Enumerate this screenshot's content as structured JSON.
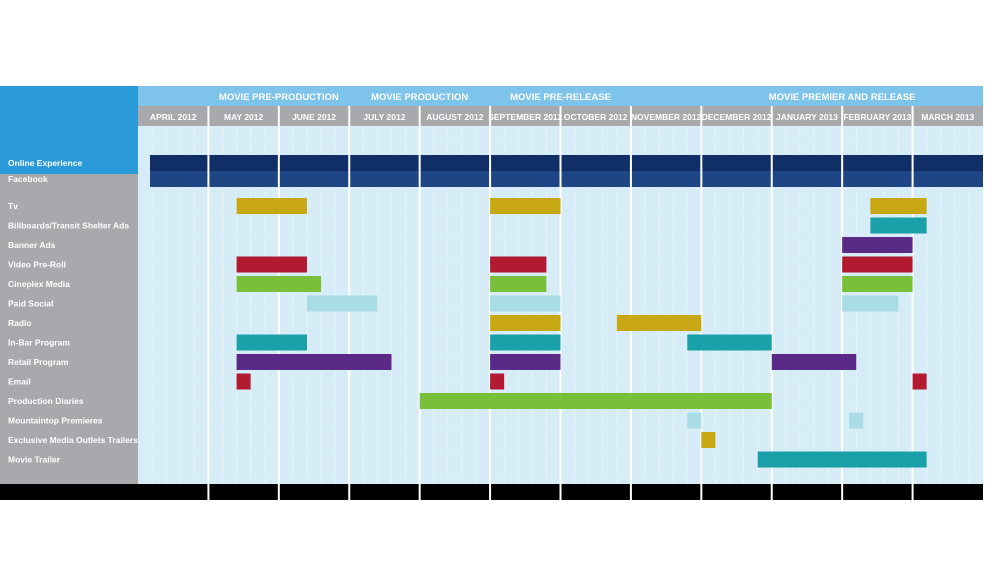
{
  "chart_data": {
    "type": "gantt",
    "title": "",
    "phases": [
      {
        "label": "MOVIE PRE-PRODUCTION",
        "start": 1,
        "end": 3
      },
      {
        "label": "MOVIE PRODUCTION",
        "start": 3,
        "end": 5
      },
      {
        "label": "MOVIE PRE-RELEASE",
        "start": 5,
        "end": 7
      },
      {
        "label": "MOVIE PREMIER AND RELEASE",
        "start": 8,
        "end": 12
      }
    ],
    "months": [
      "APRIL 2012",
      "MAY 2012",
      "JUNE 2012",
      "JULY 2012",
      "AUGUST 2012",
      "SEPTEMBER 2012",
      "OCTOBER 2012",
      "NOVEMBER 2012",
      "DECEMBER 2012",
      "JANUARY 2013",
      "FEBRUARY 2013",
      "MARCH 2013"
    ],
    "rows": [
      {
        "label": "Online Experience",
        "color": "#0f2f66",
        "bars": [
          [
            0,
            12
          ]
        ]
      },
      {
        "label": "Facebook",
        "color": "#1f4584",
        "bars": [
          [
            0,
            12
          ]
        ]
      },
      {
        "label": "Tv",
        "color": "#c7a714",
        "bars": [
          [
            1.4,
            2.4
          ],
          [
            5.0,
            6.0
          ],
          [
            10.4,
            11.2
          ]
        ]
      },
      {
        "label": "Billboards/Transit Shelter Ads",
        "color": "#1aa0a8",
        "bars": [
          [
            10.4,
            11.2
          ]
        ]
      },
      {
        "label": "Banner Ads",
        "color": "#5a2a86",
        "bars": [
          [
            10.0,
            11.0
          ]
        ]
      },
      {
        "label": "Video Pre-Roll",
        "color": "#b21a32",
        "bars": [
          [
            1.4,
            2.4
          ],
          [
            5.0,
            5.8
          ],
          [
            10.0,
            11.0
          ]
        ]
      },
      {
        "label": "Cineplex Media",
        "color": "#79bf3a",
        "bars": [
          [
            1.4,
            2.6
          ],
          [
            5.0,
            5.8
          ],
          [
            10.0,
            11.0
          ]
        ]
      },
      {
        "label": "Paid Social",
        "color": "#a8dde4",
        "bars": [
          [
            2.4,
            3.4
          ],
          [
            5.0,
            6.0
          ],
          [
            10.0,
            10.8
          ]
        ]
      },
      {
        "label": "Radio",
        "color": "#c7a714",
        "bars": [
          [
            5.0,
            6.0
          ],
          [
            6.8,
            8.0
          ]
        ]
      },
      {
        "label": "In-Bar Program",
        "color": "#1aa0a8",
        "bars": [
          [
            1.4,
            2.4
          ],
          [
            5.0,
            6.0
          ],
          [
            7.8,
            9.0
          ]
        ]
      },
      {
        "label": "Retail Program",
        "color": "#5a2a86",
        "bars": [
          [
            1.4,
            3.6
          ],
          [
            5.0,
            6.0
          ],
          [
            9.0,
            10.2
          ]
        ]
      },
      {
        "label": "Email",
        "color": "#b21a32",
        "bars": [
          [
            1.4,
            1.6
          ],
          [
            5.0,
            5.2
          ],
          [
            11.0,
            11.2
          ]
        ]
      },
      {
        "label": "Production Diaries",
        "color": "#79bf3a",
        "bars": [
          [
            4.0,
            9.0
          ]
        ]
      },
      {
        "label": "Mountaintop Premieres",
        "color": "#a8dde4",
        "bars": [
          [
            7.8,
            8.0
          ],
          [
            10.1,
            10.3
          ]
        ]
      },
      {
        "label": "Exclusive Media Outlets Trailers",
        "color": "#c7a714",
        "bars": [
          [
            8.0,
            8.2
          ]
        ]
      },
      {
        "label": "Movie Trailer",
        "color": "#1aa0a8",
        "bars": [
          [
            8.8,
            11.2
          ]
        ]
      }
    ],
    "colors": {
      "corner": "#2b9ad8",
      "phase_band": "#7ec3ea",
      "month_band": "#a7a9ac",
      "label_column": "#a7a9ac",
      "grid_bg": "#d6ecf6",
      "bottom_bar": "#000000"
    }
  }
}
